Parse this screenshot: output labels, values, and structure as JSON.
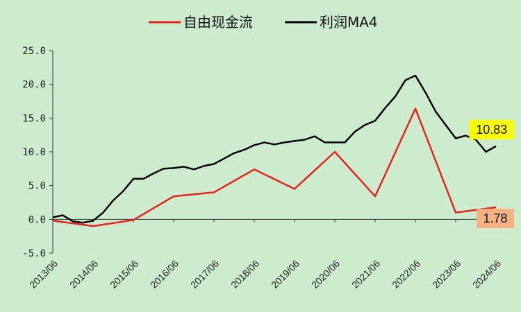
{
  "chart_data": {
    "type": "line",
    "title": "",
    "xlabel": "",
    "ylabel": "",
    "ylim": [
      -5,
      25
    ],
    "yticks": [
      "-5.0",
      "0.0",
      "5.0",
      "10.0",
      "15.0",
      "20.0",
      "25.0"
    ],
    "x_tick_labels": [
      "2013/06",
      "2014/06",
      "2015/06",
      "2016/06",
      "2017/06",
      "2018/06",
      "2019/06",
      "2020/06",
      "2021/06",
      "2022/06",
      "2023/06",
      "2024/06"
    ],
    "grid": false,
    "legend": "top",
    "series": [
      {
        "name": "自由现金流",
        "color": "#e8211d",
        "points": [
          [
            "2013/06",
            -0.2
          ],
          [
            "2014/06",
            -1.0
          ],
          [
            "2015/06",
            -0.1
          ],
          [
            "2016/06",
            3.4
          ],
          [
            "2017/06",
            4.0
          ],
          [
            "2018/06",
            7.4
          ],
          [
            "2019/06",
            4.5
          ],
          [
            "2020/06",
            10.0
          ],
          [
            "2021/06",
            3.4
          ],
          [
            "2022/06",
            16.4
          ],
          [
            "2023/06",
            1.0
          ],
          [
            "2024/06",
            1.78
          ]
        ]
      },
      {
        "name": "利润MA4",
        "color": "#000000",
        "points": [
          [
            "2013/06",
            0.3
          ],
          [
            "2013/09",
            0.6
          ],
          [
            "2013/12",
            -0.3
          ],
          [
            "2014/03",
            -0.5
          ],
          [
            "2014/06",
            -0.2
          ],
          [
            "2014/09",
            1.0
          ],
          [
            "2014/12",
            2.8
          ],
          [
            "2015/03",
            4.2
          ],
          [
            "2015/06",
            6.0
          ],
          [
            "2015/09",
            6.0
          ],
          [
            "2015/12",
            6.8
          ],
          [
            "2016/03",
            7.5
          ],
          [
            "2016/06",
            7.6
          ],
          [
            "2016/09",
            7.8
          ],
          [
            "2016/12",
            7.4
          ],
          [
            "2017/03",
            7.9
          ],
          [
            "2017/06",
            8.2
          ],
          [
            "2017/09",
            9.0
          ],
          [
            "2017/12",
            9.8
          ],
          [
            "2018/03",
            10.3
          ],
          [
            "2018/06",
            11.0
          ],
          [
            "2018/09",
            11.4
          ],
          [
            "2018/12",
            11.1
          ],
          [
            "2019/03",
            11.4
          ],
          [
            "2019/06",
            11.6
          ],
          [
            "2019/09",
            11.8
          ],
          [
            "2019/12",
            12.3
          ],
          [
            "2020/03",
            11.4
          ],
          [
            "2020/06",
            11.4
          ],
          [
            "2020/09",
            11.4
          ],
          [
            "2020/12",
            13.0
          ],
          [
            "2021/03",
            14.0
          ],
          [
            "2021/06",
            14.6
          ],
          [
            "2021/09",
            16.5
          ],
          [
            "2021/12",
            18.2
          ],
          [
            "2022/03",
            20.6
          ],
          [
            "2022/06",
            21.3
          ],
          [
            "2022/09",
            18.8
          ],
          [
            "2022/12",
            16.0
          ],
          [
            "2023/03",
            14.0
          ],
          [
            "2023/06",
            12.0
          ],
          [
            "2023/09",
            12.4
          ],
          [
            "2023/12",
            11.8
          ],
          [
            "2024/03",
            10.0
          ],
          [
            "2024/06",
            10.83
          ]
        ]
      }
    ],
    "callouts": [
      {
        "text": "10.83",
        "series": 1,
        "bg": "#ffff00"
      },
      {
        "text": "1.78",
        "series": 0,
        "bg": "#f4b183"
      }
    ]
  }
}
